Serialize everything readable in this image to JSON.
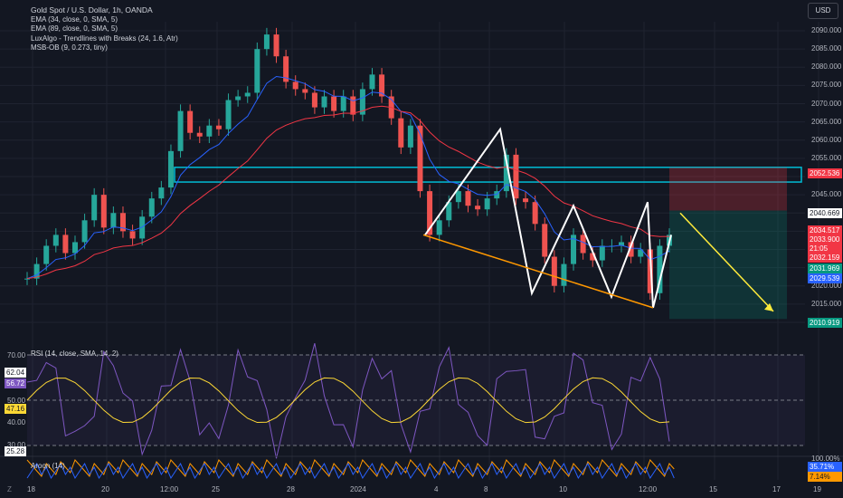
{
  "legend": {
    "title": "Gold Spot / U.S. Dollar, 1h, OANDA",
    "ind1": "EMA (34, close, 0, SMA, 5)",
    "ind2": "EMA (89, close, 0, SMA, 5)",
    "ind3": "LuxAlgo - Trendlines with Breaks (24, 1.6, Atr)",
    "ind4": "MSB-OB (9, 0.273, tiny)"
  },
  "currency": "USD",
  "rsi_label": "RSI (14, close, SMA, 14, 2)",
  "aroon_label": "Aroon (14)",
  "zoom_label": "Z",
  "price_labels": [
    {
      "text": "2052.536",
      "bg": "#f23645",
      "fg": "#ffffff"
    },
    {
      "text": "2040.669",
      "bg": "#ffffff",
      "fg": "#131722"
    },
    {
      "text": "2034.517",
      "bg": "#f23645",
      "fg": "#ffffff"
    },
    {
      "text": "2033.900",
      "bg": "#f23645",
      "fg": "#ffffff"
    },
    {
      "text": "21:05",
      "bg": "#f23645",
      "fg": "#ffffff"
    },
    {
      "text": "2032.159",
      "bg": "#f23645",
      "fg": "#ffffff"
    },
    {
      "text": "2031.969",
      "bg": "#089981",
      "fg": "#ffffff"
    },
    {
      "text": "2029.539",
      "bg": "#2962ff",
      "fg": "#ffffff"
    },
    {
      "text": "2010.919",
      "bg": "#089981",
      "fg": "#ffffff"
    }
  ],
  "rsi_values": [
    {
      "text": "62.04",
      "bg": "#ffffff",
      "fg": "#131722"
    },
    {
      "text": "56.72",
      "bg": "#7e57c2",
      "fg": "#ffffff"
    },
    {
      "text": "47.16",
      "bg": "#fdd835",
      "fg": "#131722"
    },
    {
      "text": "25.28",
      "bg": "#ffffff",
      "fg": "#131722"
    }
  ],
  "aroon_values": [
    {
      "text": "35.71%",
      "bg": "#2962ff",
      "fg": "#ffffff"
    },
    {
      "text": "7.14%",
      "bg": "#ff9800",
      "fg": "#131722"
    }
  ],
  "chart_data": {
    "type": "line",
    "title": "Gold Spot / U.S. Dollar, 1h, OANDA",
    "yticks": [
      "2090.000",
      "2085.000",
      "2080.000",
      "2075.000",
      "2070.000",
      "2065.000",
      "2060.000",
      "2055.000",
      "2050.000",
      "2045.000",
      "2040.000",
      "2035.000",
      "2030.000",
      "2025.000",
      "2020.000",
      "2015.000",
      "2010.000"
    ],
    "ylim": [
      2008.5,
      2092.5
    ],
    "rsi_ticks": [
      "70.00",
      "50.00",
      "40.00",
      "30.00"
    ],
    "aroon_tick": "100.00%",
    "xticks": [
      "18",
      "20",
      "12:00",
      "25",
      "28",
      "2024",
      "4",
      "8",
      "10",
      "12:00",
      "15",
      "17",
      "19"
    ],
    "series": [
      {
        "name": "XAUUSD close",
        "color": "#26a69a",
        "values": [
          2022,
          2026,
          2031,
          2034,
          2029,
          2032,
          2038,
          2045,
          2036,
          2040,
          2035,
          2033,
          2039,
          2044,
          2047,
          2057,
          2068,
          2062,
          2061,
          2064,
          2063,
          2071,
          2072,
          2073,
          2085,
          2089,
          2083,
          2076,
          2074,
          2073,
          2069,
          2072,
          2068,
          2072,
          2067,
          2074,
          2078,
          2072,
          2066,
          2058,
          2064,
          2046,
          2034,
          2038,
          2043,
          2046,
          2042,
          2041,
          2044,
          2046,
          2056,
          2044,
          2043,
          2037,
          2028,
          2020,
          2026,
          2034,
          2029,
          2027,
          2031,
          2031,
          2032,
          2028,
          2030,
          2018,
          2031,
          2034
        ]
      }
    ],
    "pattern_zigzag": [
      2034,
      2063,
      2018,
      2042,
      2017,
      2043,
      2014,
      2034
    ],
    "target_line": [
      2040,
      2013
    ],
    "zone_top": 2052.536,
    "zone_bottom": 2048.5
  }
}
